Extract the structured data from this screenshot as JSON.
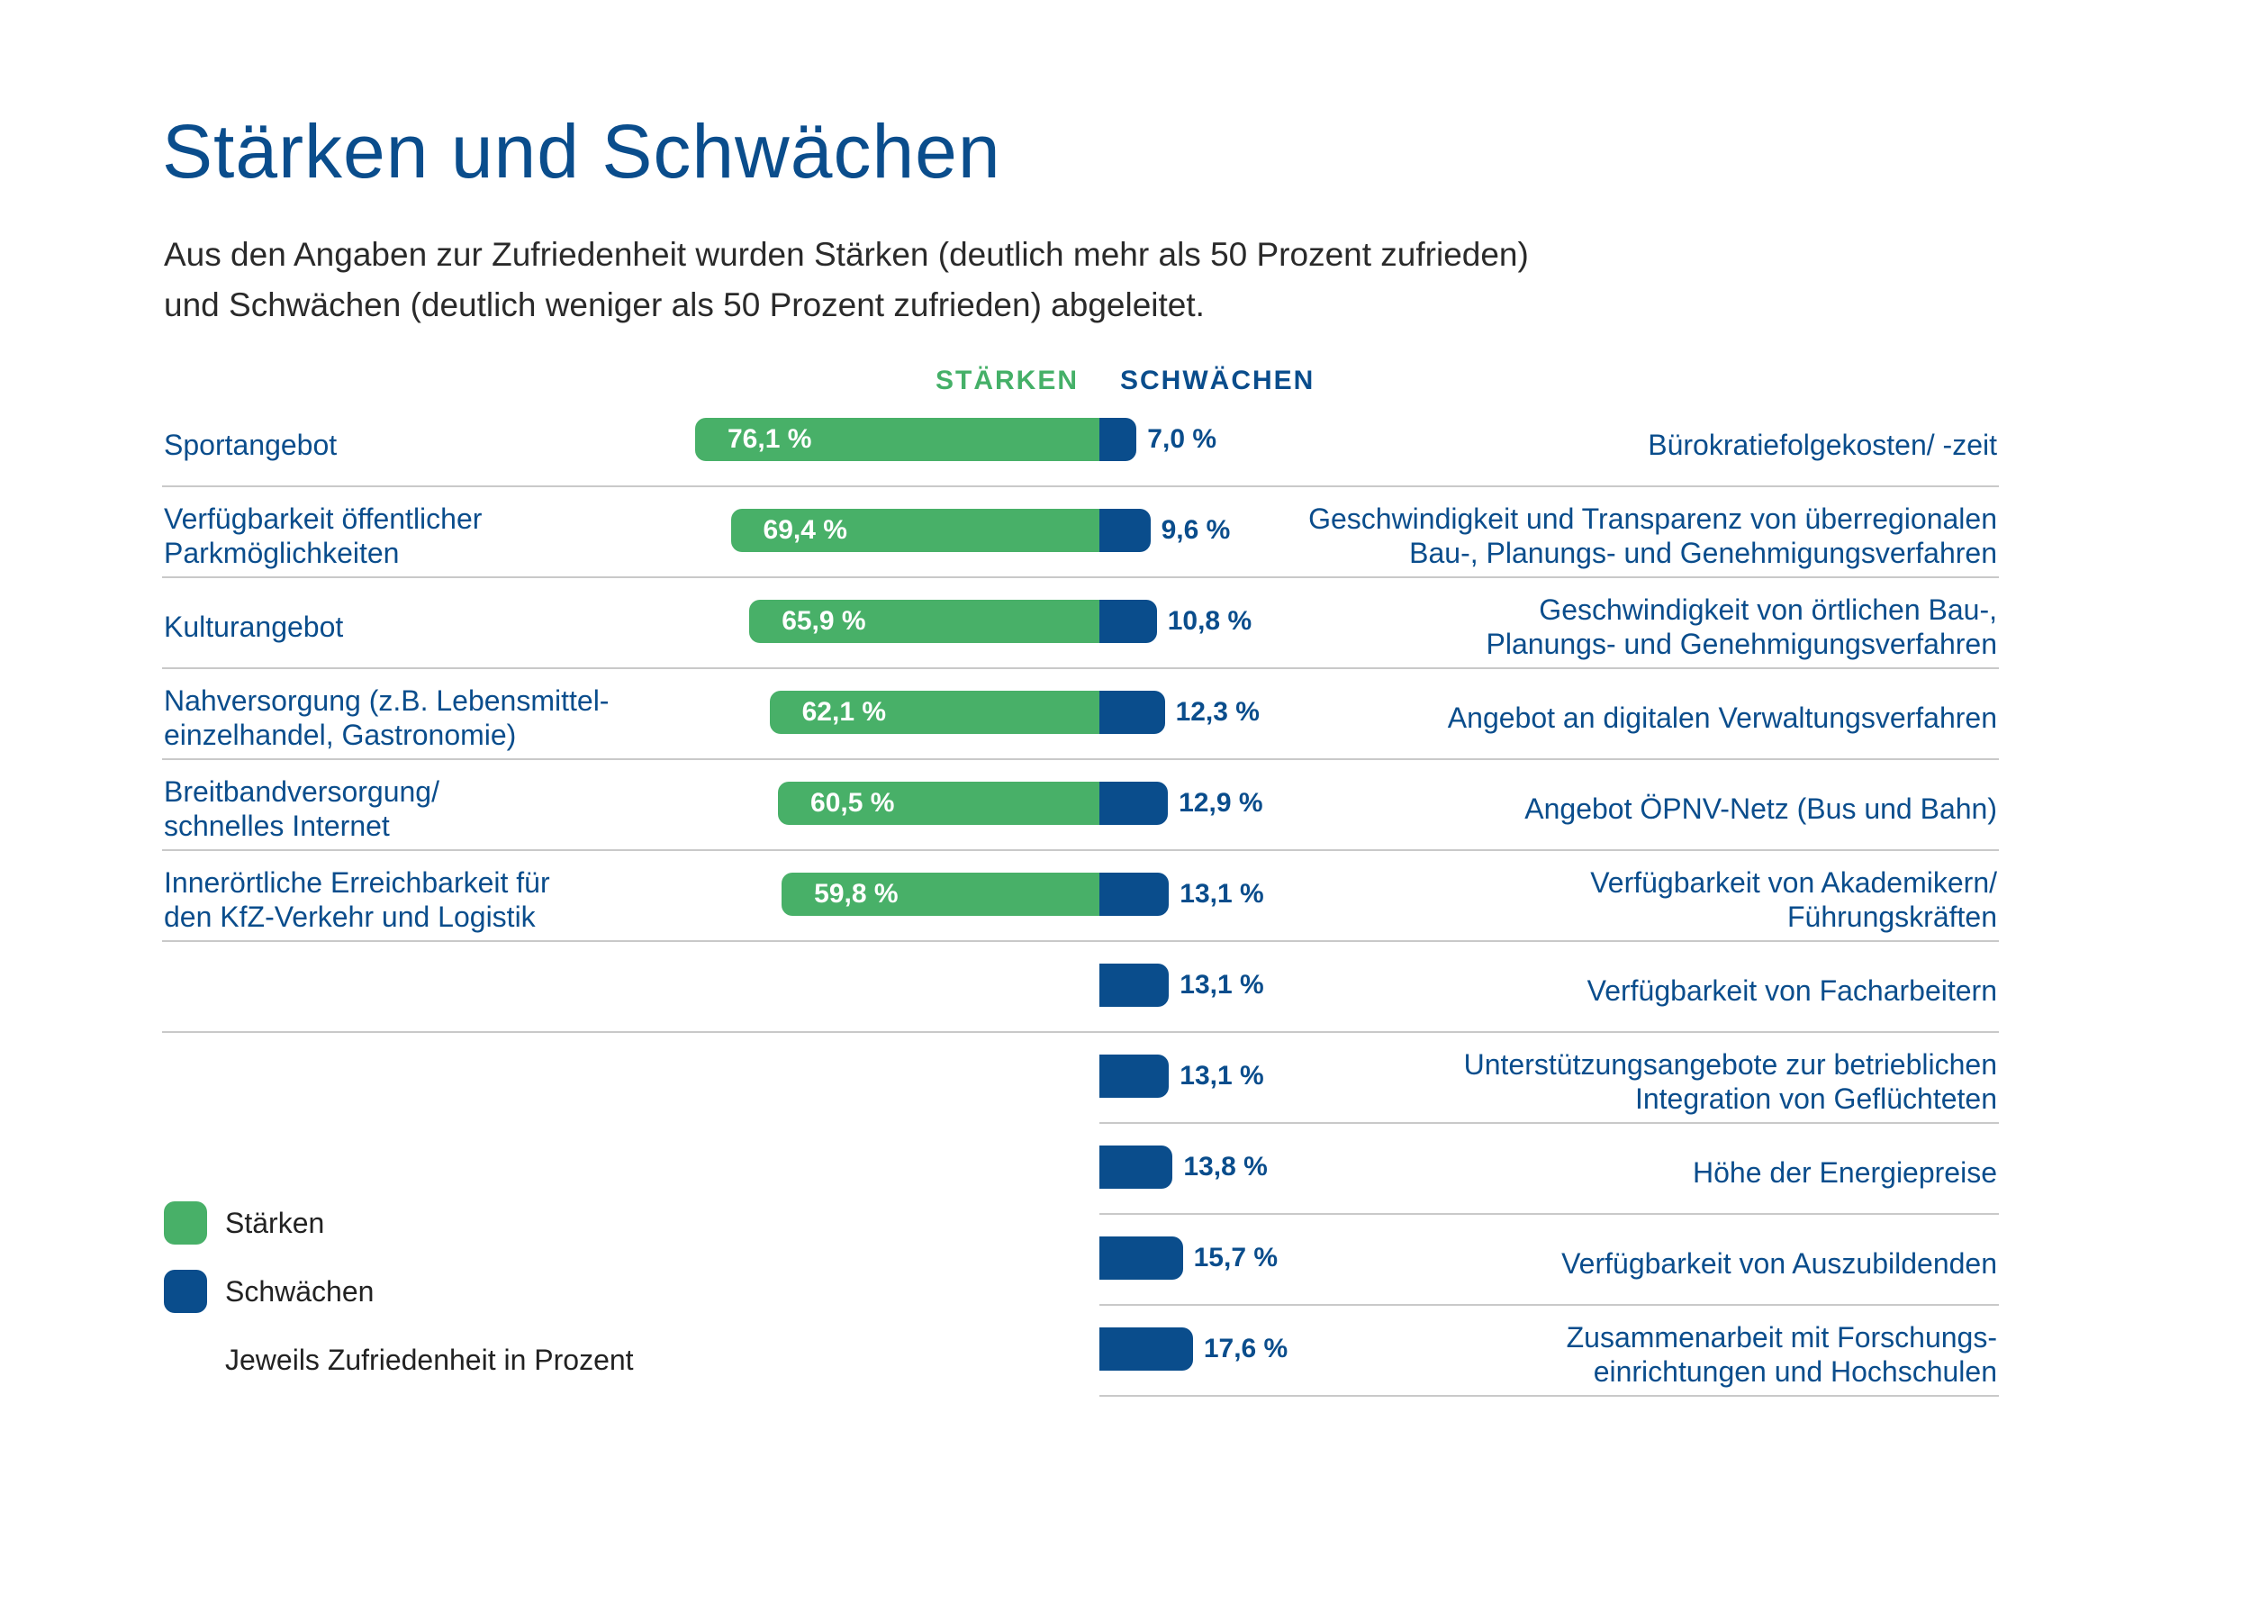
{
  "title": "Stärken und Schwächen",
  "subtitle_lines": [
    "Aus den Angaben zur Zufriedenheit wurden Stärken (deutlich mehr als 50 Prozent zufrieden)",
    "und Schwächen (deutlich weniger als 50 Prozent zufrieden) abgeleitet."
  ],
  "legend": {
    "strengths": "Stärken",
    "weaknesses": "Schwächen",
    "note": "Jeweils Zufriedenheit in Prozent"
  },
  "colors": {
    "strengths": "#48b068",
    "weaknesses": "#0a4d8c",
    "title": "#0a4d8c",
    "divider": "#c9c9c9"
  },
  "chart_data": {
    "type": "bar",
    "orientation": "horizontal-diverging",
    "unit": "%",
    "column_headers": {
      "strengths": "STÄRKEN",
      "weaknesses": "SCHWÄCHEN"
    },
    "strengths": [
      {
        "label_lines": [
          "Sportangebot"
        ],
        "value": 76.1,
        "value_label": "76,1 %"
      },
      {
        "label_lines": [
          "Verfügbarkeit öffentlicher",
          "Parkmöglichkeiten"
        ],
        "value": 69.4,
        "value_label": "69,4 %"
      },
      {
        "label_lines": [
          "Kulturangebot"
        ],
        "value": 65.9,
        "value_label": "65,9 %"
      },
      {
        "label_lines": [
          "Nahversorgung (z.B. Lebensmittel-",
          "einzelhandel, Gastronomie)"
        ],
        "value": 62.1,
        "value_label": "62,1 %"
      },
      {
        "label_lines": [
          "Breitbandversorgung/",
          "schnelles Internet"
        ],
        "value": 60.5,
        "value_label": "60,5 %"
      },
      {
        "label_lines": [
          "Innerörtliche Erreichbarkeit für",
          "den KfZ-Verkehr und Logistik"
        ],
        "value": 59.8,
        "value_label": "59,8 %"
      }
    ],
    "weaknesses": [
      {
        "label_lines": [
          "Bürokratiefolgekosten/ -zeit"
        ],
        "value": 7.0,
        "value_label": "7,0 %"
      },
      {
        "label_lines": [
          "Geschwindigkeit und Transparenz von überregionalen",
          "Bau-, Planungs- und Genehmigungsverfahren"
        ],
        "value": 9.6,
        "value_label": "9,6 %"
      },
      {
        "label_lines": [
          "Geschwindigkeit von örtlichen Bau-,",
          "Planungs- und Genehmigungsverfahren"
        ],
        "value": 10.8,
        "value_label": "10,8 %"
      },
      {
        "label_lines": [
          "Angebot an digitalen Verwaltungsverfahren"
        ],
        "value": 12.3,
        "value_label": "12,3 %"
      },
      {
        "label_lines": [
          "Angebot ÖPNV-Netz (Bus und Bahn)"
        ],
        "value": 12.9,
        "value_label": "12,9 %"
      },
      {
        "label_lines": [
          "Verfügbarkeit von Akademikern/",
          "Führungskräften"
        ],
        "value": 13.1,
        "value_label": "13,1 %"
      },
      {
        "label_lines": [
          "Verfügbarkeit von Facharbeitern"
        ],
        "value": 13.1,
        "value_label": "13,1 %"
      },
      {
        "label_lines": [
          "Unterstützungsangebote zur betrieblichen",
          "Integration von Geflüchteten"
        ],
        "value": 13.1,
        "value_label": "13,1 %"
      },
      {
        "label_lines": [
          "Höhe der Energiepreise"
        ],
        "value": 13.8,
        "value_label": "13,8 %"
      },
      {
        "label_lines": [
          "Verfügbarkeit von Auszubildenden"
        ],
        "value": 15.7,
        "value_label": "15,7 %"
      },
      {
        "label_lines": [
          "Zusammenarbeit mit Forschungs-",
          "einrichtungen und Hochschulen"
        ],
        "value": 17.6,
        "value_label": "17,6 %"
      }
    ]
  }
}
